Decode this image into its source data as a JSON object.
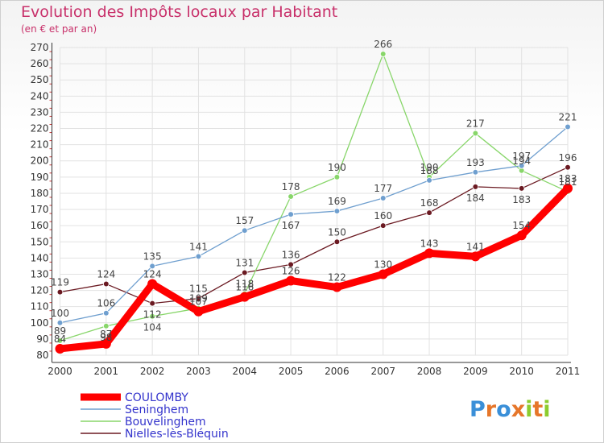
{
  "chart_data": {
    "type": "line",
    "title": "Evolution des Impôts locaux par Habitant",
    "subtitle": "(en € et par an)",
    "x": [
      "2000",
      "2001",
      "2002",
      "2003",
      "2004",
      "2005",
      "2006",
      "2007",
      "2008",
      "2009",
      "2010",
      "2011"
    ],
    "ylim": [
      80,
      270
    ],
    "yticks": [
      80,
      90,
      100,
      110,
      120,
      130,
      140,
      150,
      160,
      170,
      180,
      190,
      200,
      210,
      220,
      230,
      240,
      250,
      260,
      270
    ],
    "series": [
      {
        "name": "Nielles-lès-Bléquin",
        "color": "#6b1a22",
        "values": [
          119,
          124,
          112,
          115,
          131,
          136,
          150,
          160,
          168,
          184,
          183,
          196
        ]
      },
      {
        "name": "Bouvelinghem",
        "color": "#88d66a",
        "values": [
          89,
          98,
          104,
          109,
          118,
          178,
          190,
          266,
          190,
          217,
          194,
          181
        ]
      },
      {
        "name": "Seninghem",
        "color": "#6f9fcf",
        "values": [
          100,
          106,
          135,
          141,
          157,
          167,
          169,
          177,
          188,
          193,
          197,
          221
        ]
      },
      {
        "name": "COULOMBY",
        "color": "#ff0000",
        "values": [
          84,
          87,
          124,
          107,
          116,
          126,
          122,
          130,
          143,
          141,
          154,
          183
        ]
      }
    ],
    "legend": [
      "COULOMBY",
      "Seninghem",
      "Bouvelinghem",
      "Nielles-lès-Bléquin"
    ]
  },
  "logo": {
    "letters": [
      "P",
      "r",
      "o",
      "x",
      "i",
      "t",
      "i"
    ],
    "colors": [
      "#3a8fd8",
      "#e6762a",
      "#3a8fd8",
      "#e6762a",
      "#8ccc2e",
      "#e6762a",
      "#8ccc2e"
    ]
  }
}
